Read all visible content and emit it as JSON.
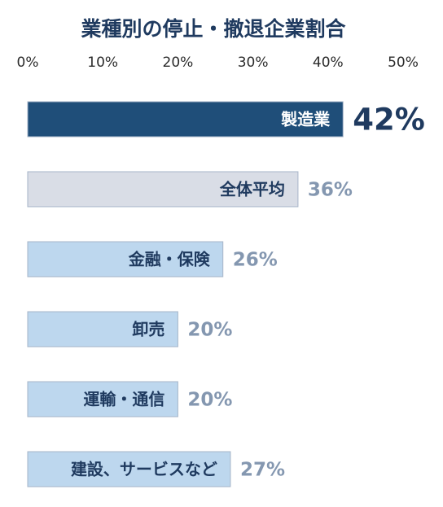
{
  "chart_data": {
    "type": "bar",
    "orientation": "horizontal",
    "title": "業種別の停止・撤退企業割合",
    "xlim": [
      0,
      50
    ],
    "x_ticks": [
      "0%",
      "10%",
      "20%",
      "30%",
      "40%",
      "50%"
    ],
    "grid": false,
    "legend": "none",
    "categories": [
      "製造業",
      "全体平均",
      "金融・保険",
      "卸売",
      "運輸・通信",
      "建設、サービスなど"
    ],
    "values": [
      42,
      36,
      26,
      20,
      20,
      27
    ],
    "value_labels": [
      "42%",
      "36%",
      "26%",
      "20%",
      "20%",
      "27%"
    ],
    "colors": {
      "highlight_fill": "#1f4e79",
      "highlight_text": "#ffffff",
      "highlight_value": "#1f3a5f",
      "average_fill": "#d9dde6",
      "average_text": "#1f3a5f",
      "default_fill": "#bdd7ee",
      "default_text": "#1f3a5f",
      "value_text": "#8497b0",
      "bar_border": "#a6b4c8"
    }
  }
}
